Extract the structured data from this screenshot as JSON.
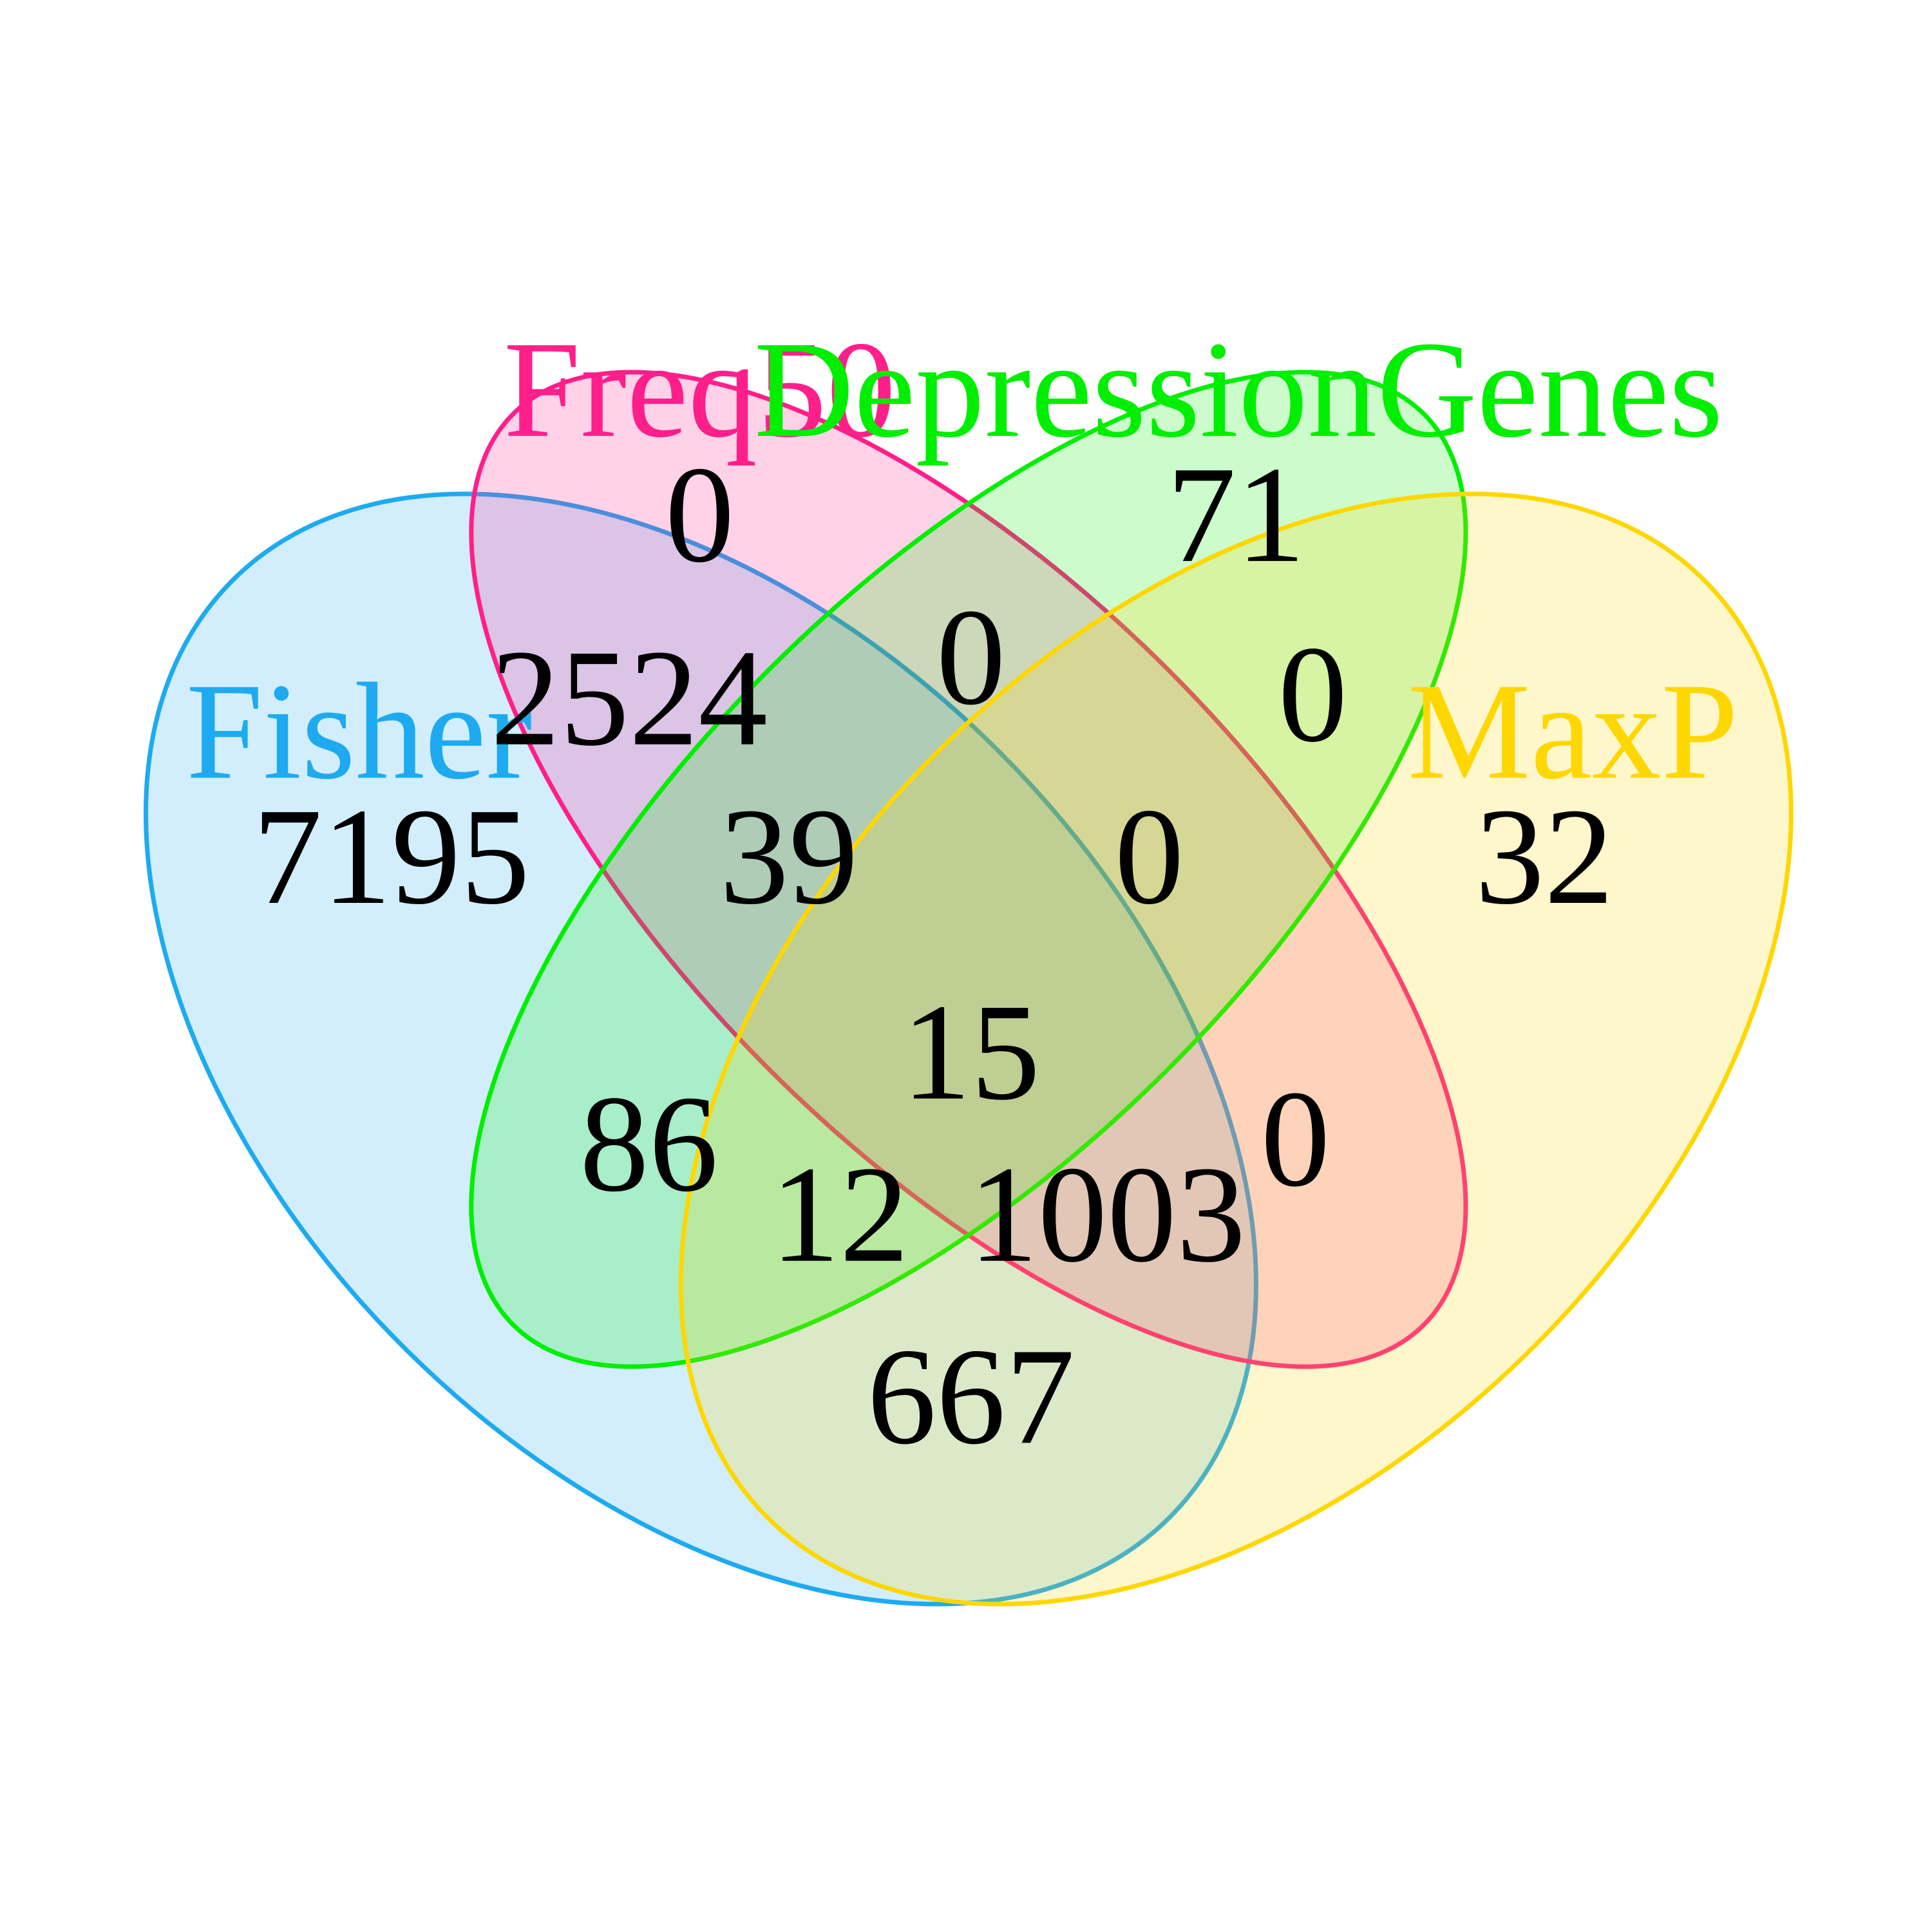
{
  "sets": [
    {
      "id": "fisher",
      "name": "Fisher",
      "color": "#1EAAF0"
    },
    {
      "id": "freq",
      "name": "Freq50",
      "color": "#FF1F8A"
    },
    {
      "id": "depression",
      "name": "DepressionGenes",
      "color": "#00EE00"
    },
    {
      "id": "maxp",
      "name": "MaxP",
      "color": "#FFD700"
    }
  ],
  "regions": [
    {
      "id": "freq_only",
      "sets": [
        "Freq50"
      ],
      "count": "0"
    },
    {
      "id": "depression_only",
      "sets": [
        "DepressionGenes"
      ],
      "count": "71"
    },
    {
      "id": "fisher_freq",
      "sets": [
        "Fisher",
        "Freq50"
      ],
      "count": "2524"
    },
    {
      "id": "freq_depression",
      "sets": [
        "Freq50",
        "DepressionGenes"
      ],
      "count": "0"
    },
    {
      "id": "depression_maxp",
      "sets": [
        "DepressionGenes",
        "MaxP"
      ],
      "count": "0"
    },
    {
      "id": "fisher_only",
      "sets": [
        "Fisher"
      ],
      "count": "7195"
    },
    {
      "id": "fisher_freq_depression",
      "sets": [
        "Fisher",
        "Freq50",
        "DepressionGenes"
      ],
      "count": "39"
    },
    {
      "id": "freq_depression_maxp",
      "sets": [
        "Freq50",
        "DepressionGenes",
        "MaxP"
      ],
      "count": "0"
    },
    {
      "id": "maxp_only",
      "sets": [
        "MaxP"
      ],
      "count": "32"
    },
    {
      "id": "all_four",
      "sets": [
        "Fisher",
        "Freq50",
        "DepressionGenes",
        "MaxP"
      ],
      "count": "15"
    },
    {
      "id": "fisher_depression",
      "sets": [
        "Fisher",
        "DepressionGenes"
      ],
      "count": "86"
    },
    {
      "id": "freq_maxp",
      "sets": [
        "Freq50",
        "MaxP"
      ],
      "count": "0"
    },
    {
      "id": "fisher_depression_maxp",
      "sets": [
        "Fisher",
        "DepressionGenes",
        "MaxP"
      ],
      "count": "12"
    },
    {
      "id": "fisher_freq_maxp",
      "sets": [
        "Fisher",
        "Freq50",
        "MaxP"
      ],
      "count": "1003"
    },
    {
      "id": "fisher_maxp",
      "sets": [
        "Fisher",
        "MaxP"
      ],
      "count": "667"
    }
  ]
}
